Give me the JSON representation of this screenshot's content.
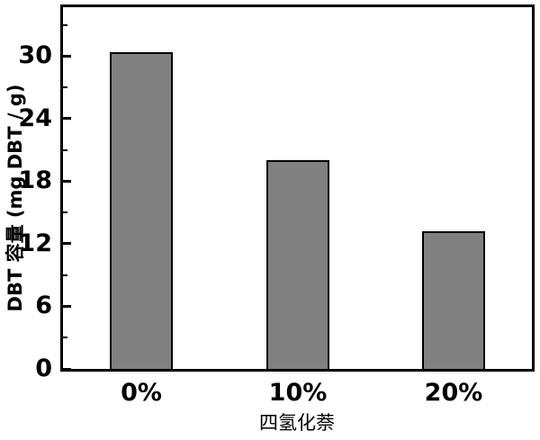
{
  "chart_data": {
    "type": "bar",
    "title": "",
    "categories": [
      "0%",
      "10%",
      "20%"
    ],
    "values": [
      30.4,
      20.0,
      13.2
    ],
    "xlabel": "四氢化萘",
    "ylabel": "DBT 容量 (mg DBT / g)",
    "ylim": [
      0,
      34.7
    ],
    "yticks_major": [
      0,
      6,
      12,
      18,
      24,
      30
    ],
    "yticks_minor": [
      3,
      9,
      15,
      21,
      27,
      33
    ],
    "grid": false,
    "legend": null,
    "bar_color": "#808080",
    "bar_border_color": "#000000",
    "axis_color": "#000000",
    "background_color": "#ffffff",
    "tick_direction": "in"
  }
}
